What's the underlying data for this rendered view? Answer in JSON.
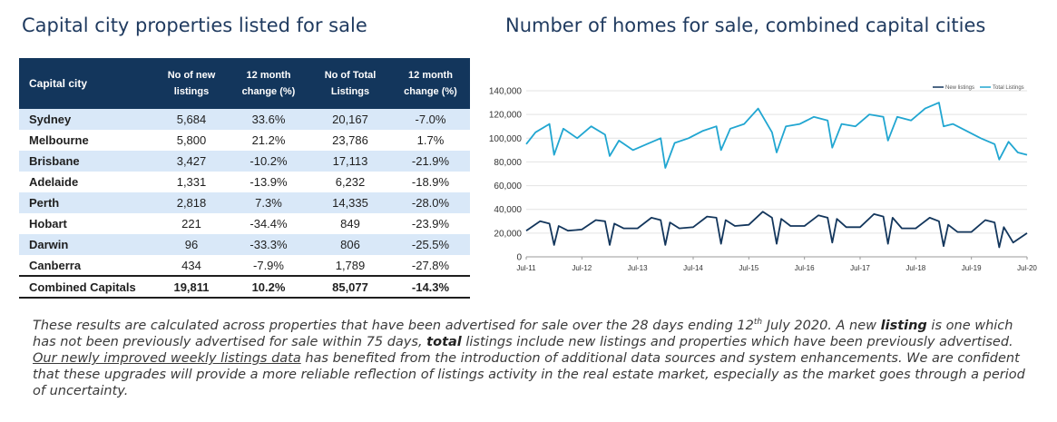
{
  "left_title": "Capital city properties listed for sale",
  "right_title": "Number of homes for sale, combined capital cities",
  "table": {
    "headers": {
      "city": "Capital city",
      "new_l1": "No of new",
      "new_l2": "listings",
      "chg1_l1": "12 month",
      "chg1_l2": "change (%)",
      "tot_l1": "No of Total",
      "tot_l2": "Listings",
      "chg2_l1": "12 month",
      "chg2_l2": "change (%)"
    },
    "rows": [
      {
        "city": "Sydney",
        "new": "5,684",
        "new_chg": "33.6%",
        "total": "20,167",
        "total_chg": "-7.0%"
      },
      {
        "city": "Melbourne",
        "new": "5,800",
        "new_chg": "21.2%",
        "total": "23,786",
        "total_chg": "1.7%"
      },
      {
        "city": "Brisbane",
        "new": "3,427",
        "new_chg": "-10.2%",
        "total": "17,113",
        "total_chg": "-21.9%"
      },
      {
        "city": "Adelaide",
        "new": "1,331",
        "new_chg": "-13.9%",
        "total": "6,232",
        "total_chg": "-18.9%"
      },
      {
        "city": "Perth",
        "new": "2,818",
        "new_chg": "7.3%",
        "total": "14,335",
        "total_chg": "-28.0%"
      },
      {
        "city": "Hobart",
        "new": "221",
        "new_chg": "-34.4%",
        "total": "849",
        "total_chg": "-23.9%"
      },
      {
        "city": "Darwin",
        "new": "96",
        "new_chg": "-33.3%",
        "total": "806",
        "total_chg": "-25.5%"
      },
      {
        "city": "Canberra",
        "new": "434",
        "new_chg": "-7.9%",
        "total": "1,789",
        "total_chg": "-27.8%"
      }
    ],
    "total_row": {
      "city": "Combined Capitals",
      "new": "19,811",
      "new_chg": "10.2%",
      "total": "85,077",
      "total_chg": "-14.3%"
    }
  },
  "notes": {
    "p1": "These results are calculated across properties that have been advertised for sale over the 28 days ending 12",
    "sup": "th",
    "p2": " July 2020.  A new ",
    "b1": "listing",
    "p3": " is one which has not been previously advertised for sale within 75 days, ",
    "b2": "total",
    "p4": " listings include new listings and properties which have been previously advertised. ",
    "u1": "Our newly improved weekly listings data",
    "p5": " has benefited from the introduction of additional data sources and system enhancements. We are confident that these upgrades will provide a more reliable reflection of listings activity in the real estate market, especially as the market goes through a period of uncertainty."
  },
  "chart_data": {
    "type": "line",
    "title": "Number of homes for sale, combined capital cities",
    "x_ticks": [
      "Jul-11",
      "Jul-12",
      "Jul-13",
      "Jul-14",
      "Jul-15",
      "Jul-16",
      "Jul-17",
      "Jul-18",
      "Jul-19",
      "Jul-20"
    ],
    "ylim": [
      0,
      140000
    ],
    "y_ticks": [
      "0",
      "20,000",
      "40,000",
      "60,000",
      "80,000",
      "100,000",
      "120,000",
      "140,000"
    ],
    "legend_position": "top-right",
    "grid": true,
    "series": [
      {
        "name": "New listings",
        "color": "#13365c",
        "x": [
          "2011-07",
          "2011-10",
          "2011-12",
          "2012-01",
          "2012-02",
          "2012-04",
          "2012-07",
          "2012-10",
          "2012-12",
          "2013-01",
          "2013-02",
          "2013-04",
          "2013-07",
          "2013-10",
          "2013-12",
          "2014-01",
          "2014-02",
          "2014-04",
          "2014-07",
          "2014-10",
          "2014-12",
          "2015-01",
          "2015-02",
          "2015-04",
          "2015-07",
          "2015-10",
          "2015-12",
          "2016-01",
          "2016-02",
          "2016-04",
          "2016-07",
          "2016-10",
          "2016-12",
          "2017-01",
          "2017-02",
          "2017-04",
          "2017-07",
          "2017-10",
          "2017-12",
          "2018-01",
          "2018-02",
          "2018-04",
          "2018-07",
          "2018-10",
          "2018-12",
          "2019-01",
          "2019-02",
          "2019-04",
          "2019-07",
          "2019-10",
          "2019-12",
          "2020-01",
          "2020-02",
          "2020-04",
          "2020-07"
        ],
        "values": [
          22000,
          30000,
          28000,
          10000,
          26000,
          22000,
          23000,
          31000,
          30000,
          10000,
          28000,
          24000,
          24000,
          33000,
          31000,
          10000,
          29000,
          24000,
          25000,
          34000,
          33000,
          11000,
          31000,
          26000,
          27000,
          38000,
          33000,
          11000,
          32000,
          26000,
          26000,
          35000,
          33000,
          12000,
          32000,
          25000,
          25000,
          36000,
          34000,
          11000,
          33000,
          24000,
          24000,
          33000,
          30000,
          9000,
          27000,
          21000,
          21000,
          31000,
          29000,
          8000,
          25000,
          12000,
          20000
        ]
      },
      {
        "name": "Total Listings",
        "color": "#21a6d1",
        "x": [
          "2011-07",
          "2011-09",
          "2011-12",
          "2012-01",
          "2012-03",
          "2012-06",
          "2012-09",
          "2012-12",
          "2013-01",
          "2013-03",
          "2013-06",
          "2013-09",
          "2013-12",
          "2014-01",
          "2014-03",
          "2014-06",
          "2014-09",
          "2014-12",
          "2015-01",
          "2015-03",
          "2015-06",
          "2015-09",
          "2015-12",
          "2016-01",
          "2016-03",
          "2016-06",
          "2016-09",
          "2016-12",
          "2017-01",
          "2017-03",
          "2017-06",
          "2017-09",
          "2017-12",
          "2018-01",
          "2018-03",
          "2018-06",
          "2018-09",
          "2018-12",
          "2019-01",
          "2019-03",
          "2019-06",
          "2019-09",
          "2019-12",
          "2020-01",
          "2020-03",
          "2020-05",
          "2020-07"
        ],
        "values": [
          95000,
          105000,
          112000,
          86000,
          108000,
          100000,
          110000,
          103000,
          85000,
          98000,
          90000,
          95000,
          100000,
          75000,
          96000,
          100000,
          106000,
          110000,
          90000,
          108000,
          112000,
          125000,
          105000,
          88000,
          110000,
          112000,
          118000,
          115000,
          92000,
          112000,
          110000,
          120000,
          118000,
          98000,
          118000,
          115000,
          125000,
          130000,
          110000,
          112000,
          106000,
          100000,
          95000,
          82000,
          97000,
          88000,
          86000
        ]
      }
    ]
  }
}
